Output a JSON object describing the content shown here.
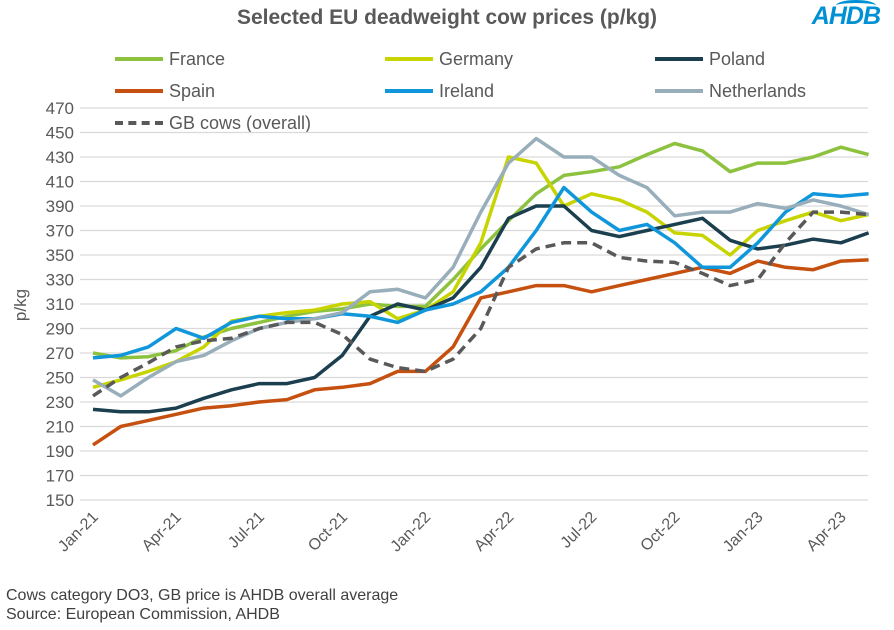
{
  "chart_data": {
    "type": "line",
    "title": "Selected EU deadweight cow prices (p/kg)",
    "ylabel": "p/kg",
    "ylim": [
      150,
      470
    ],
    "yticks": [
      150,
      170,
      190,
      210,
      230,
      250,
      270,
      290,
      310,
      330,
      350,
      370,
      390,
      410,
      430,
      450,
      470
    ],
    "xtick_labels": [
      "Jan-21",
      "Apr-21",
      "Jul-21",
      "Oct-21",
      "Jan-22",
      "Apr-22",
      "Jul-22",
      "Oct-22",
      "Jan-23",
      "Apr-23"
    ],
    "x": [
      "Jan-21",
      "Feb-21",
      "Mar-21",
      "Apr-21",
      "May-21",
      "Jun-21",
      "Jul-21",
      "Aug-21",
      "Sep-21",
      "Oct-21",
      "Nov-21",
      "Dec-21",
      "Jan-22",
      "Feb-22",
      "Mar-22",
      "Apr-22",
      "May-22",
      "Jun-22",
      "Jul-22",
      "Aug-22",
      "Sep-22",
      "Oct-22",
      "Nov-22",
      "Dec-22",
      "Jan-23",
      "Feb-23",
      "Mar-23",
      "Apr-23",
      "May-23"
    ],
    "grid": "horizontal",
    "legend": "top",
    "series": [
      {
        "name": "France",
        "color": "#8dc23f",
        "dashed": false,
        "values": [
          270,
          266,
          267,
          272,
          283,
          290,
          295,
          300,
          304,
          306,
          310,
          308,
          308,
          330,
          355,
          378,
          400,
          415,
          418,
          422,
          432,
          441,
          435,
          418,
          425,
          425,
          430,
          438,
          432
        ]
      },
      {
        "name": "Germany",
        "color": "#c8d400",
        "dashed": false,
        "values": [
          242,
          248,
          255,
          263,
          275,
          296,
          300,
          303,
          305,
          310,
          312,
          298,
          305,
          320,
          360,
          430,
          425,
          390,
          400,
          395,
          385,
          368,
          366,
          350,
          370,
          378,
          385,
          378,
          383
        ]
      },
      {
        "name": "Poland",
        "color": "#1b3f4e",
        "dashed": false,
        "values": [
          224,
          222,
          222,
          225,
          233,
          240,
          245,
          245,
          250,
          268,
          300,
          310,
          305,
          315,
          340,
          380,
          390,
          390,
          370,
          365,
          370,
          375,
          380,
          362,
          355,
          358,
          363,
          360,
          368
        ]
      },
      {
        "name": "Spain",
        "color": "#c5500f",
        "dashed": false,
        "values": [
          195,
          210,
          215,
          220,
          225,
          227,
          230,
          232,
          240,
          242,
          245,
          255,
          255,
          275,
          315,
          320,
          325,
          325,
          320,
          325,
          330,
          335,
          340,
          335,
          345,
          340,
          338,
          345,
          346
        ]
      },
      {
        "name": "Ireland",
        "color": "#1097db",
        "dashed": false,
        "values": [
          266,
          268,
          275,
          290,
          282,
          295,
          300,
          298,
          298,
          302,
          300,
          295,
          305,
          310,
          320,
          340,
          370,
          405,
          385,
          370,
          375,
          360,
          340,
          340,
          360,
          385,
          400,
          398,
          400
        ]
      },
      {
        "name": "Netherlands",
        "color": "#98aebb",
        "dashed": false,
        "values": [
          248,
          235,
          250,
          263,
          268,
          280,
          290,
          295,
          298,
          303,
          320,
          322,
          315,
          340,
          385,
          425,
          445,
          430,
          430,
          415,
          405,
          382,
          385,
          385,
          392,
          388,
          395,
          390,
          383
        ]
      },
      {
        "name": "GB cows (overall)",
        "color": "#595959",
        "dashed": true,
        "values": [
          235,
          250,
          262,
          275,
          280,
          282,
          290,
          295,
          295,
          285,
          265,
          258,
          255,
          265,
          290,
          340,
          355,
          360,
          360,
          348,
          345,
          344,
          335,
          325,
          330,
          360,
          385,
          385,
          383
        ]
      }
    ]
  },
  "logo": "AHDB",
  "footnote": [
    "Cows category DO3, GB price is AHDB overall average",
    "Source: European Commission, AHDB"
  ]
}
